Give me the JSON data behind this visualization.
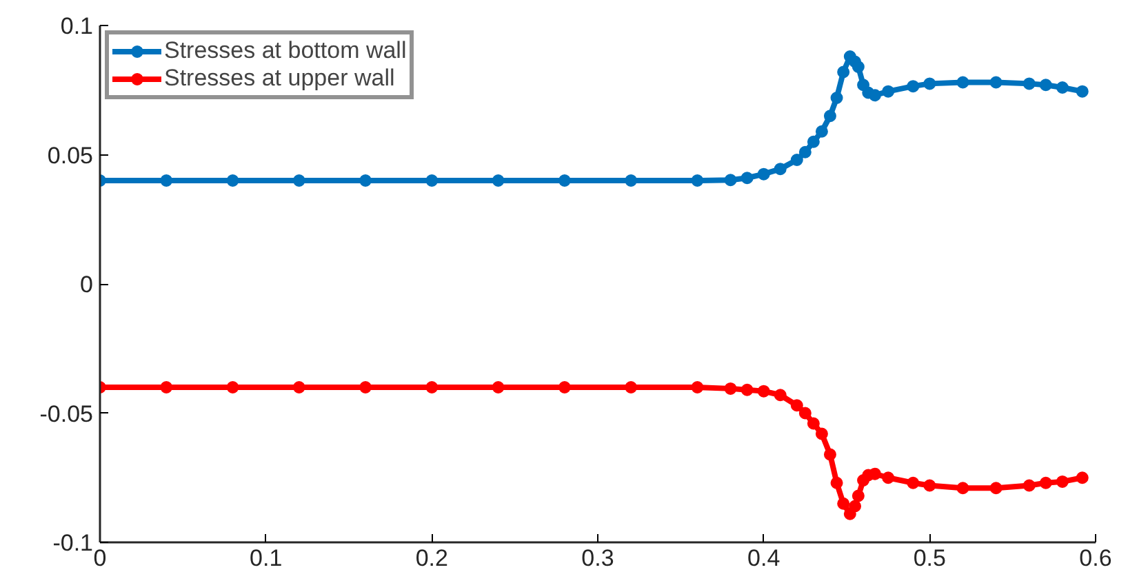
{
  "chart_data": {
    "type": "line",
    "marker": "circle",
    "line_style": "solid",
    "grid": false,
    "legend": "top left",
    "x": [
      0,
      0.04,
      0.08,
      0.12,
      0.16,
      0.2,
      0.24,
      0.28,
      0.32,
      0.36,
      0.38,
      0.39,
      0.4,
      0.41,
      0.42,
      0.425,
      0.43,
      0.435,
      0.44,
      0.444,
      0.448,
      0.452,
      0.455,
      0.457,
      0.46,
      0.463,
      0.467,
      0.475,
      0.49,
      0.5,
      0.52,
      0.54,
      0.56,
      0.57,
      0.58,
      0.592
    ],
    "series": [
      {
        "name": "Stresses at bottom wall",
        "color": "#0072bd",
        "values": [
          0.04,
          0.04,
          0.04,
          0.04,
          0.04,
          0.04,
          0.04,
          0.04,
          0.04,
          0.04,
          0.0402,
          0.041,
          0.0425,
          0.0445,
          0.048,
          0.051,
          0.055,
          0.059,
          0.065,
          0.072,
          0.082,
          0.088,
          0.086,
          0.084,
          0.077,
          0.074,
          0.073,
          0.0745,
          0.0765,
          0.0775,
          0.078,
          0.078,
          0.0775,
          0.077,
          0.076,
          0.0745
        ]
      },
      {
        "name": "Stresses at upper wall",
        "color": "#ff0000",
        "values": [
          -0.04,
          -0.04,
          -0.04,
          -0.04,
          -0.04,
          -0.04,
          -0.04,
          -0.04,
          -0.04,
          -0.04,
          -0.0405,
          -0.041,
          -0.0415,
          -0.043,
          -0.047,
          -0.05,
          -0.054,
          -0.058,
          -0.066,
          -0.077,
          -0.085,
          -0.089,
          -0.086,
          -0.082,
          -0.076,
          -0.074,
          -0.0735,
          -0.075,
          -0.077,
          -0.078,
          -0.079,
          -0.079,
          -0.078,
          -0.077,
          -0.0765,
          -0.075
        ]
      }
    ],
    "xlim": [
      0,
      0.6
    ],
    "ylim": [
      -0.1,
      0.1
    ],
    "xticks": [
      0,
      0.1,
      0.2,
      0.3,
      0.4,
      0.5,
      0.6
    ],
    "yticks": [
      -0.1,
      -0.05,
      0,
      0.05,
      0.1
    ]
  }
}
